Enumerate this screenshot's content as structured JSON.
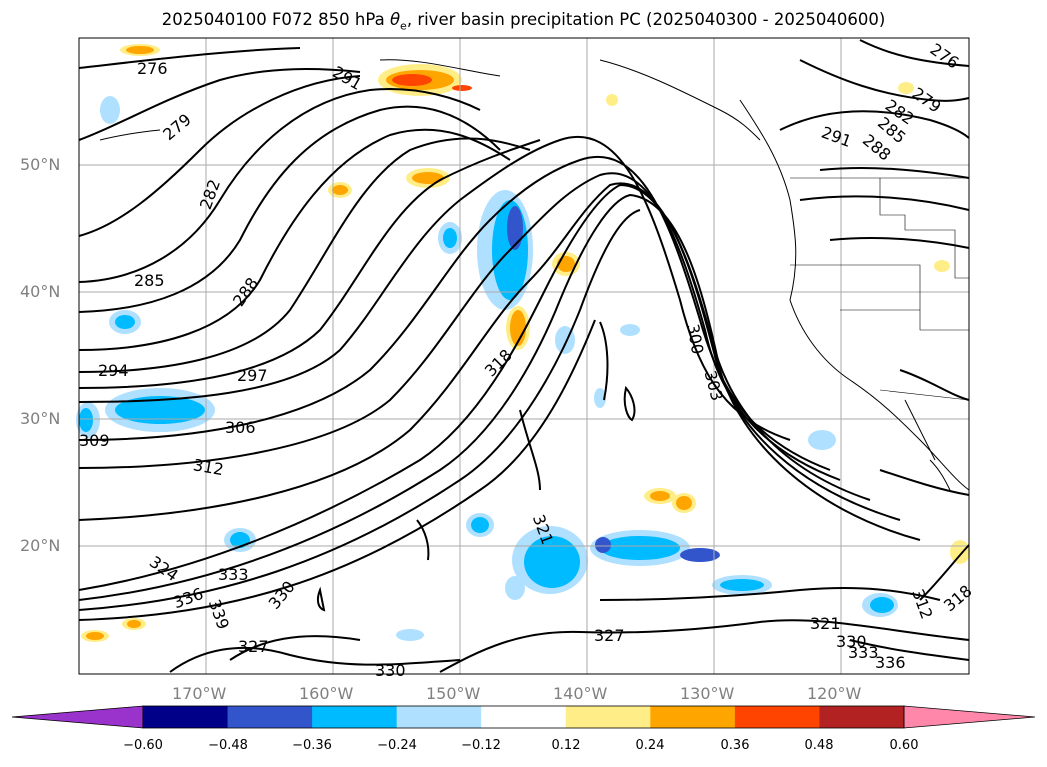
{
  "title": {
    "prefix": "2025040100 F072 850 hPa ",
    "symbol": "θ",
    "subscript": "e",
    "suffix": ", river basin precipitation PC (2025040300 - 2025040600)"
  },
  "lat_labels": [
    "50°N",
    "40°N",
    "30°N",
    "20°N"
  ],
  "lon_labels": [
    "170°W",
    "160°W",
    "150°W",
    "140°W",
    "130°W",
    "120°W"
  ],
  "contour_labels": [
    "276",
    "279",
    "282",
    "285",
    "288",
    "291",
    "294",
    "297",
    "306",
    "309",
    "312",
    "318",
    "324",
    "327",
    "321",
    "330",
    "333",
    "336",
    "339",
    "300",
    "303",
    "276",
    "279",
    "282",
    "285",
    "288",
    "291",
    "321",
    "327",
    "330",
    "333",
    "336",
    "339",
    "312",
    "318"
  ],
  "colorbar": {
    "ticks": [
      "−0.60",
      "−0.48",
      "−0.36",
      "−0.24",
      "−0.12",
      "0.12",
      "0.24",
      "0.36",
      "0.48",
      "0.60"
    ],
    "colors": [
      "#9933cc",
      "#000088",
      "#3355cc",
      "#00bbff",
      "#b0e0ff",
      "#ffffff",
      "#ffee88",
      "#ffa500",
      "#ff4400",
      "#b22222",
      "#ff88aa"
    ]
  },
  "colors": {
    "contour": "#000000",
    "grid": "#aaaaaa",
    "coast": "#000000"
  }
}
